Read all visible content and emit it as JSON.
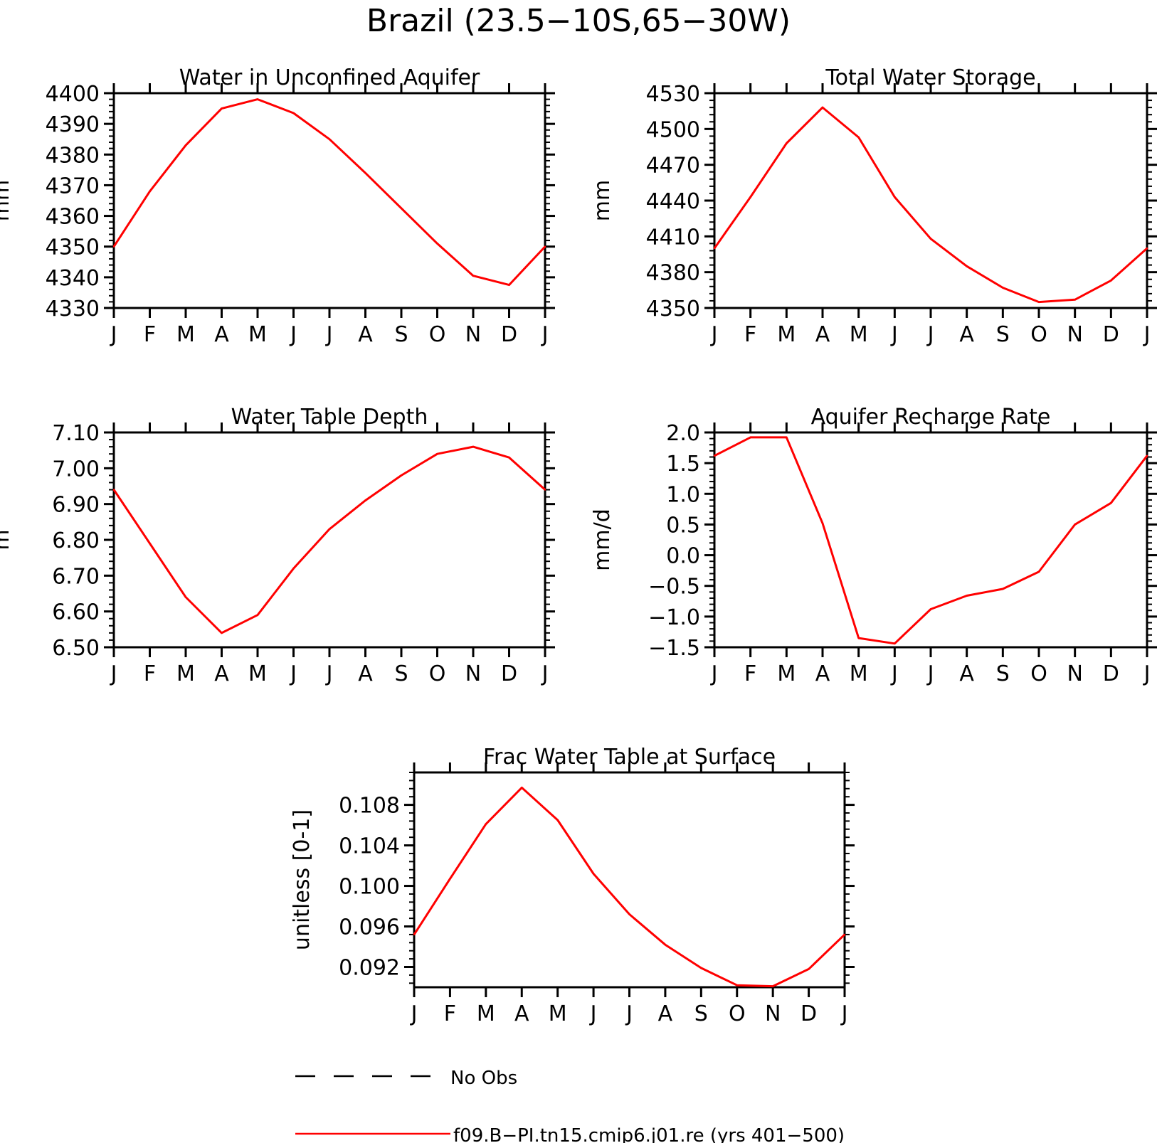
{
  "figure": {
    "title": "Brazil (23.5-10S,65-30W)",
    "months": [
      "J",
      "F",
      "M",
      "A",
      "M",
      "J",
      "J",
      "A",
      "S",
      "O",
      "N",
      "D",
      "J"
    ],
    "line_color": "#ff0000",
    "legend": [
      {
        "label": "No Obs",
        "style": "dashed",
        "color": "#000000"
      },
      {
        "label": "f09.B-PI.tn15.cmip6.j01.re (yrs 401-500)",
        "style": "solid",
        "color": "#ff0000"
      }
    ]
  },
  "chart_data": [
    {
      "type": "line",
      "title": "Water in Unconfined Aquifer",
      "ylabel": "mm",
      "ylim": [
        4330,
        4400
      ],
      "yticks": [
        4330,
        4340,
        4350,
        4360,
        4370,
        4380,
        4390,
        4400
      ],
      "ytick_labels": [
        "4330",
        "4340",
        "4350",
        "4360",
        "4370",
        "4380",
        "4390",
        "4400"
      ],
      "categories": [
        "J",
        "F",
        "M",
        "A",
        "M",
        "J",
        "J",
        "A",
        "S",
        "O",
        "N",
        "D",
        "J"
      ],
      "values": [
        4350,
        4368,
        4383,
        4395,
        4398,
        4393.5,
        4385,
        4374,
        4362.5,
        4351,
        4340.5,
        4337.5,
        4350
      ]
    },
    {
      "type": "line",
      "title": "Total Water Storage",
      "ylabel": "mm",
      "ylim": [
        4350,
        4530
      ],
      "yticks": [
        4350,
        4380,
        4410,
        4440,
        4470,
        4500,
        4530
      ],
      "ytick_labels": [
        "4350",
        "4380",
        "4410",
        "4440",
        "4470",
        "4500",
        "4530"
      ],
      "categories": [
        "J",
        "F",
        "M",
        "A",
        "M",
        "J",
        "J",
        "A",
        "S",
        "O",
        "N",
        "D",
        "J"
      ],
      "values": [
        4400,
        4443,
        4488,
        4518,
        4493,
        4443,
        4408,
        4385,
        4367,
        4355,
        4357,
        4373,
        4400
      ]
    },
    {
      "type": "line",
      "title": "Water Table Depth",
      "ylabel": "m",
      "ylim": [
        6.5,
        7.1
      ],
      "yticks": [
        6.5,
        6.6,
        6.7,
        6.8,
        6.9,
        7.0,
        7.1
      ],
      "ytick_labels": [
        "6.50",
        "6.60",
        "6.70",
        "6.80",
        "6.90",
        "7.00",
        "7.10"
      ],
      "categories": [
        "J",
        "F",
        "M",
        "A",
        "M",
        "J",
        "J",
        "A",
        "S",
        "O",
        "N",
        "D",
        "J"
      ],
      "values": [
        6.94,
        6.79,
        6.64,
        6.54,
        6.59,
        6.72,
        6.83,
        6.91,
        6.98,
        7.04,
        7.06,
        7.03,
        6.94
      ]
    },
    {
      "type": "line",
      "title": "Aquifer Recharge Rate",
      "ylabel": "mm/d",
      "ylim": [
        -1.5,
        2.0
      ],
      "yticks": [
        -1.5,
        -1.0,
        -0.5,
        0.0,
        0.5,
        1.0,
        1.5,
        2.0
      ],
      "ytick_labels": [
        "-1.5",
        "-1.0",
        "-0.5",
        "0.0",
        "0.5",
        "1.0",
        "1.5",
        "2.0"
      ],
      "categories": [
        "J",
        "F",
        "M",
        "A",
        "M",
        "J",
        "J",
        "A",
        "S",
        "O",
        "N",
        "D",
        "J"
      ],
      "values": [
        1.62,
        1.92,
        1.92,
        0.52,
        -1.35,
        -1.44,
        -0.88,
        -0.66,
        -0.55,
        -0.27,
        0.5,
        0.85,
        1.62
      ]
    },
    {
      "type": "line",
      "title": "Frac Water Table at Surface",
      "ylabel": "unitless [0-1]",
      "ylim": [
        0.09,
        0.1112
      ],
      "yticks": [
        0.092,
        0.096,
        0.1,
        0.104,
        0.108
      ],
      "ytick_labels": [
        "0.092",
        "0.096",
        "0.100",
        "0.104",
        "0.108"
      ],
      "categories": [
        "J",
        "F",
        "M",
        "A",
        "M",
        "J",
        "J",
        "A",
        "S",
        "O",
        "N",
        "D",
        "J"
      ],
      "values": [
        0.0952,
        0.1007,
        0.1061,
        0.1097,
        0.1065,
        0.1012,
        0.0972,
        0.0942,
        0.0919,
        0.0902,
        0.0901,
        0.0918,
        0.0952
      ]
    }
  ]
}
